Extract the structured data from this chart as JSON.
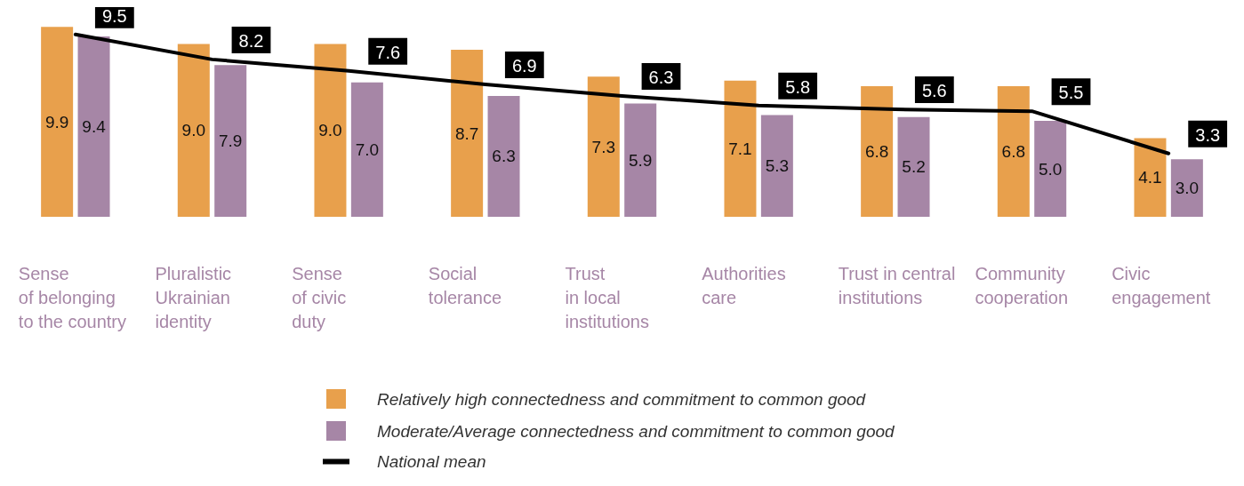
{
  "chart_data": {
    "type": "bar",
    "categories": [
      "Sense\nof belonging\nto the country",
      "Pluralistic\nUkrainian\nidentity",
      "Sense\nof civic\nduty",
      "Social\ntolerance",
      "Trust\nin local\ninstitutions",
      "Authorities\ncare",
      "Trust in central\ninstitutions",
      "Community\ncooperation",
      "Civic\nengagement"
    ],
    "series": [
      {
        "name": "Relatively high connectedness and commitment to common good",
        "color": "#e8a04c",
        "values": [
          9.9,
          9.0,
          9.0,
          8.7,
          7.3,
          7.1,
          6.8,
          6.8,
          4.1
        ],
        "value_labels": [
          "9.9",
          "9.0",
          "9.0",
          "8.7",
          "7.3",
          "7.1",
          "6.8",
          "6.8",
          "4.1"
        ]
      },
      {
        "name": "Moderate/Average connectedness and commitment to common good",
        "color": "#a686a6",
        "values": [
          9.4,
          7.9,
          7.0,
          6.3,
          5.9,
          5.3,
          5.2,
          5.0,
          3.0
        ],
        "value_labels": [
          "9.4",
          "7.9",
          "7.0",
          "6.3",
          "5.9",
          "5.3",
          "5.2",
          "5.0",
          "3.0"
        ]
      },
      {
        "name": "National mean",
        "type": "line",
        "color": "#000000",
        "values": [
          9.5,
          8.2,
          7.6,
          6.9,
          6.3,
          5.8,
          5.6,
          5.5,
          3.3
        ],
        "value_labels": [
          "9.5",
          "8.2",
          "7.6",
          "6.9",
          "6.3",
          "5.8",
          "5.6",
          "5.5",
          "3.3"
        ]
      }
    ],
    "legend": "bottom",
    "marker": "none",
    "line_style": "solid",
    "grid": false
  }
}
